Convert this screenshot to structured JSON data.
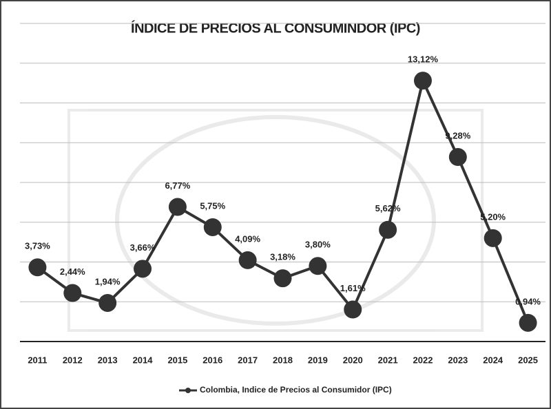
{
  "chart_data": {
    "type": "line",
    "title": "ÍNDICE DE PRECIOS AL CONSUMINDOR (IPC)",
    "categories": [
      "2011",
      "2012",
      "2013",
      "2014",
      "2015",
      "2016",
      "2017",
      "2018",
      "2019",
      "2020",
      "2021",
      "2022",
      "2023",
      "2024",
      "2025"
    ],
    "series": [
      {
        "name": "Colombia, Indice de Precios al Consumidor (IPC)",
        "color": "#333333",
        "values": [
          3.73,
          2.44,
          1.94,
          3.66,
          6.77,
          5.75,
          4.09,
          3.18,
          3.8,
          1.61,
          5.62,
          13.12,
          9.28,
          5.2,
          0.94
        ],
        "value_labels": [
          "3,73%",
          "2,44%",
          "1,94%",
          "3,66%",
          "6,77%",
          "5,75%",
          "4,09%",
          "3,18%",
          "3,80%",
          "1,61%",
          "5,62%",
          "13,12%",
          "9,28%",
          "5,20%",
          "0,94%"
        ]
      }
    ],
    "ylim": [
      0,
      16
    ],
    "yticks": [
      0,
      2,
      4,
      6,
      8,
      10,
      12,
      14,
      16
    ],
    "grid": true,
    "legend": "bottom"
  }
}
